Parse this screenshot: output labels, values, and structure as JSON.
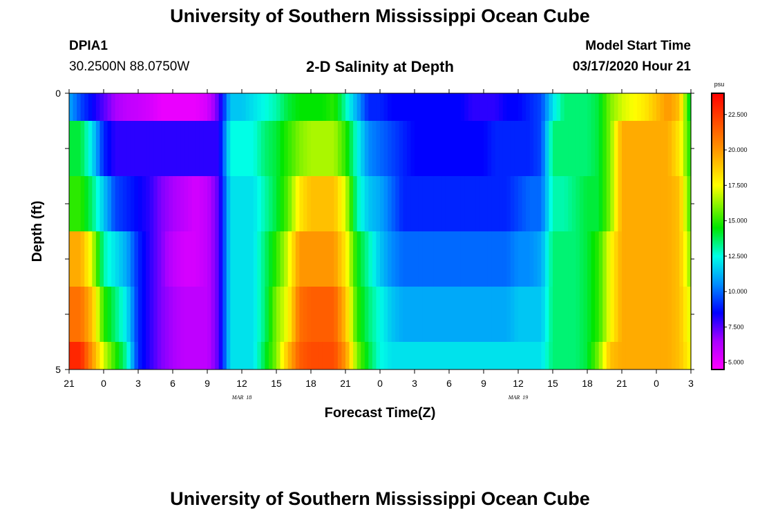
{
  "header": {
    "title": "University of Southern Mississippi Ocean Cube",
    "station_id": "DPIA1",
    "station_coords": "30.2500N 88.0750W",
    "plot_title": "2-D Salinity at Depth",
    "model_start_label": "Model Start Time",
    "model_start_value": "03/17/2020 Hour 21"
  },
  "footer": {
    "title": "University of Southern Mississippi Ocean Cube"
  },
  "chart_data": {
    "type": "heatmap",
    "title": "2-D Salinity at Depth",
    "xlabel": "Forecast Time(Z)",
    "ylabel": "Depth (ft)",
    "x_hours": [
      0,
      54
    ],
    "y_range": [
      0,
      5
    ],
    "y_tick_labels": [
      "0",
      "5"
    ],
    "x_tick_labels": [
      "21",
      "0",
      "3",
      "6",
      "9",
      "12",
      "15",
      "18",
      "21",
      "0",
      "3",
      "6",
      "9",
      "12",
      "15",
      "18",
      "21",
      "0",
      "3"
    ],
    "date_labels": [
      {
        "text": "MAR 18",
        "hour": 15
      },
      {
        "text": "MAR 19",
        "hour": 39
      }
    ],
    "colorbar": {
      "unit": "psu",
      "min": 4.5,
      "max": 24.0,
      "tick_values": [
        5.0,
        7.5,
        10.0,
        12.5,
        15.0,
        17.5,
        20.0,
        22.5
      ],
      "tick_labels": [
        "5.000",
        "7.500",
        "10.000",
        "12.500",
        "15.000",
        "17.500",
        "20.000",
        "22.500"
      ]
    },
    "row_depth_bins": [
      "0.0-0.5",
      "0.5-1.5",
      "1.5-2.5",
      "2.5-3.5",
      "3.5-4.5",
      "4.5-5.0"
    ],
    "times": [
      0,
      1,
      2,
      3,
      4,
      5,
      6,
      7,
      8,
      9,
      10,
      11,
      12,
      13,
      14,
      15,
      16,
      17,
      18,
      19,
      20,
      21,
      22,
      23,
      24,
      25,
      26,
      27,
      28,
      29,
      30,
      31,
      32,
      33,
      34,
      35,
      36,
      37,
      38,
      39,
      40,
      41,
      42,
      43,
      44,
      45,
      46,
      47,
      48,
      49,
      50,
      51,
      52,
      53,
      54
    ],
    "salinity_rows": [
      [
        11,
        9.5,
        8.5,
        7.5,
        6.5,
        6,
        5.8,
        5.5,
        5,
        5,
        5,
        5,
        5.5,
        7.5,
        11.5,
        11.5,
        12,
        12.5,
        13,
        14,
        14.5,
        14.5,
        14.5,
        15,
        13,
        11,
        9,
        9,
        8.5,
        8.5,
        8.5,
        8.5,
        8.5,
        8.5,
        8.5,
        8,
        8,
        8,
        8.5,
        8.5,
        9,
        9.5,
        12,
        13.5,
        13.5,
        13.5,
        14,
        16,
        17,
        17.5,
        18,
        19,
        20,
        19,
        13.5
      ],
      [
        14,
        14,
        12,
        9,
        8,
        8,
        8,
        8,
        8,
        8,
        8,
        8,
        8,
        8,
        12.5,
        12.5,
        12.5,
        13.5,
        14,
        15,
        16,
        16.5,
        16.5,
        16.5,
        15,
        12.5,
        10.5,
        10,
        9.5,
        9,
        8.5,
        8.5,
        8.5,
        8.5,
        8.5,
        8.5,
        8.5,
        9,
        9,
        9,
        9,
        9.5,
        13.5,
        13.5,
        13.5,
        13.5,
        14,
        16,
        19.5,
        19.5,
        19.5,
        19.5,
        19.5,
        18,
        14.5
      ],
      [
        15,
        15,
        13.5,
        11.5,
        9.5,
        9,
        8.5,
        8,
        7,
        6.5,
        6,
        5.5,
        6,
        7.5,
        12,
        12,
        12,
        13,
        14,
        15.5,
        18,
        19,
        19,
        19,
        17,
        13,
        11.5,
        11,
        10,
        9,
        9,
        9,
        9,
        9,
        9,
        9,
        9,
        9,
        9,
        9.5,
        10,
        10,
        13,
        13,
        13.5,
        14,
        14,
        16,
        19.5,
        19.5,
        19.5,
        19.5,
        19.5,
        19,
        15
      ],
      [
        19.5,
        19.5,
        17,
        13,
        12,
        11,
        9,
        8,
        7,
        6,
        5.5,
        5.5,
        6,
        7.5,
        12,
        12,
        12,
        13.5,
        15,
        17,
        20,
        20,
        20,
        20,
        18,
        14.5,
        13,
        11.5,
        10.5,
        10,
        10,
        10,
        10,
        10,
        10,
        10,
        10,
        10,
        10,
        10.5,
        10.5,
        11,
        13.5,
        13.5,
        13.5,
        14,
        15,
        17.5,
        19.5,
        19.5,
        19.5,
        19.5,
        19.5,
        19,
        16
      ],
      [
        21,
        21,
        19,
        15,
        13.5,
        12,
        9,
        8,
        7,
        6.5,
        6,
        6,
        6,
        7.5,
        12,
        12,
        12,
        13.5,
        16,
        17.5,
        21,
        21.5,
        21.5,
        21.5,
        19,
        15,
        13.5,
        12.5,
        11.5,
        11,
        11,
        11,
        11,
        11,
        11,
        11,
        11,
        11,
        11,
        11.5,
        11.5,
        11.5,
        13.5,
        13.5,
        13.5,
        14,
        15,
        17.5,
        19.5,
        19.5,
        19.5,
        19.5,
        19.5,
        19,
        17
      ],
      [
        23,
        23,
        20,
        17,
        15,
        13,
        9,
        8,
        7,
        6.5,
        6,
        6,
        6,
        7.5,
        12,
        12,
        12,
        14,
        16,
        19,
        21.5,
        22,
        22,
        22,
        20,
        16,
        14,
        12.5,
        12,
        12,
        12,
        12,
        12,
        12,
        12,
        12,
        12,
        12,
        12,
        12,
        12,
        12,
        13.5,
        13.5,
        13.5,
        14,
        16,
        19,
        19.5,
        19.5,
        19.5,
        19.5,
        19.5,
        19,
        17.5
      ]
    ]
  }
}
